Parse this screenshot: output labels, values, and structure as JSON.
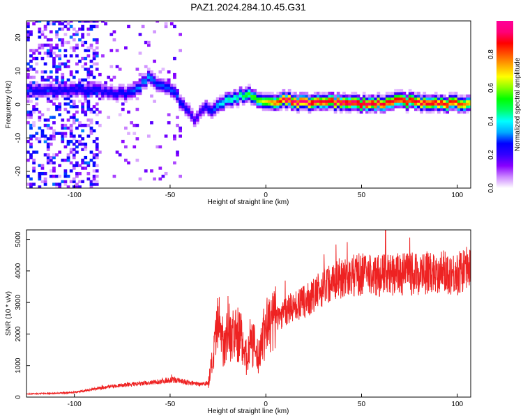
{
  "figure_title": "PAZ1.2024.284.10.45.G31",
  "chart_data": [
    {
      "type": "heatmap",
      "xlabel": "Height of straight line (km)",
      "ylabel": "Frequency (Hz)",
      "xlim": [
        -125,
        107
      ],
      "ylim": [
        -25,
        25
      ],
      "x_ticks": [
        -100,
        -50,
        0,
        50,
        100
      ],
      "y_ticks": [
        -20,
        -10,
        0,
        10,
        20
      ],
      "grid": false,
      "colorbar": {
        "label": "Normalized spectral amplitude",
        "range": [
          0,
          1
        ],
        "ticks": [
          0.0,
          0.2,
          0.4,
          0.6,
          0.8
        ],
        "colormap": [
          "#ffffff",
          "#cc88ff",
          "#8800ff",
          "#3300ff",
          "#0000ff",
          "#00aaff",
          "#00ffff",
          "#00ff66",
          "#00ff00",
          "#88ff00",
          "#ffff00",
          "#ffaa00",
          "#ff5500",
          "#ff0000",
          "#ff0077",
          "#ff0099"
        ]
      },
      "ridge": {
        "x": [
          -90,
          -80,
          -70,
          -62,
          -58,
          -52,
          -47,
          -42,
          -38,
          -35,
          -32,
          -28,
          -24,
          -20,
          -15,
          -10,
          -5,
          0,
          10,
          20,
          30,
          40,
          50,
          60,
          70,
          80,
          90,
          100,
          107
        ],
        "frequency": [
          4,
          3,
          3,
          8,
          6,
          5,
          2,
          -2,
          -5,
          -3,
          -1,
          -2,
          0,
          1,
          2,
          3,
          1,
          0,
          1,
          0,
          1,
          0,
          0,
          0,
          1,
          0,
          0,
          0,
          0
        ],
        "amplitude": [
          0.25,
          0.25,
          0.3,
          0.35,
          0.3,
          0.3,
          0.3,
          0.25,
          0.2,
          0.2,
          0.25,
          0.3,
          0.4,
          0.45,
          0.45,
          0.55,
          0.6,
          0.7,
          0.95,
          0.95,
          0.9,
          0.95,
          0.95,
          0.9,
          0.9,
          0.9,
          0.9,
          0.85,
          0.7
        ]
      }
    },
    {
      "type": "line",
      "xlabel": "Height of straight line (km)",
      "ylabel": "SNR (10 * v/v)",
      "xlim": [
        -125,
        107
      ],
      "ylim": [
        0,
        5300
      ],
      "x_ticks": [
        -100,
        -50,
        0,
        50,
        100
      ],
      "y_ticks": [
        0,
        1000,
        2000,
        3000,
        4000,
        5000
      ],
      "grid": false,
      "series": [
        {
          "color": "#ee2222",
          "x": [
            -125,
            -110,
            -100,
            -90,
            -80,
            -70,
            -60,
            -55,
            -50,
            -45,
            -40,
            -35,
            -30,
            -27,
            -25,
            -22,
            -20,
            -18,
            -15,
            -12,
            -10,
            -8,
            -6,
            -4,
            -2,
            0,
            5,
            10,
            15,
            20,
            25,
            30,
            35,
            40,
            50,
            60,
            70,
            80,
            90,
            95,
            100,
            105,
            107
          ],
          "values": [
            100,
            120,
            150,
            250,
            350,
            400,
            450,
            500,
            550,
            520,
            450,
            420,
            450,
            1400,
            2300,
            1700,
            2300,
            1900,
            2000,
            1800,
            1200,
            1800,
            1600,
            1200,
            1900,
            2200,
            2500,
            2700,
            2900,
            3000,
            3200,
            3500,
            3700,
            3800,
            3900,
            3850,
            3900,
            3900,
            4000,
            3950,
            3900,
            4100,
            4300
          ]
        }
      ]
    }
  ]
}
